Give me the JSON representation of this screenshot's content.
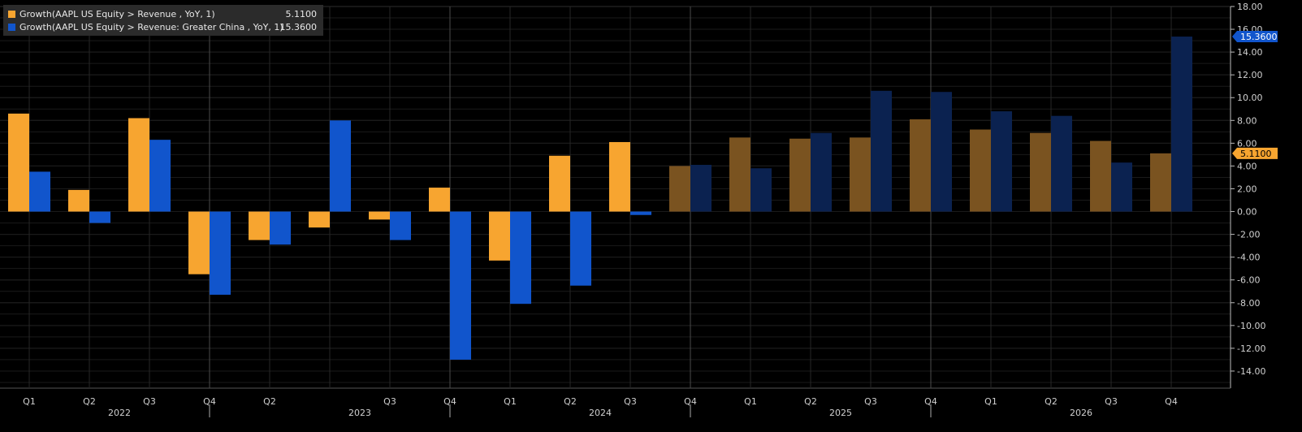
{
  "legend": {
    "items": [
      {
        "name": "Growth(AAPL US Equity > Revenue , YoY, 1)",
        "value": "5.1100"
      },
      {
        "name": "Growth(AAPL US Equity > Revenue: Greater China , YoY, 1)",
        "value": "15.3600"
      }
    ]
  },
  "chart_data": {
    "type": "bar",
    "categories": [
      "Q1",
      "Q2",
      "Q3",
      "Q4",
      "Q1",
      "Q2",
      "Q3",
      "Q4",
      "Q1",
      "Q2",
      "Q3",
      "Q4",
      "Q1",
      "Q2",
      "Q3",
      "Q4",
      "Q1",
      "Q2",
      "Q3",
      "Q4"
    ],
    "quarter_labels": [
      "Q1",
      "Q2",
      "Q3",
      "Q4",
      "Q2",
      "",
      "Q3",
      "Q4",
      "Q1",
      "Q2",
      "Q3",
      "Q4",
      "Q1",
      "Q2",
      "Q3",
      "Q4",
      "Q1",
      "Q2",
      "Q3",
      "Q4"
    ],
    "year_labels": [
      {
        "label": "2022",
        "index": 1
      },
      {
        "label": "2023",
        "index": 5
      },
      {
        "label": "2024",
        "index": 9
      },
      {
        "label": "2025",
        "index": 13
      },
      {
        "label": "2026",
        "index": 17
      }
    ],
    "year_boundaries": [
      3,
      7,
      11,
      15
    ],
    "forecast_start_index": 11,
    "series": [
      {
        "name": "Growth(AAPL US Equity > Revenue , YoY, 1)",
        "color": "#f7a530",
        "forecast_color": "#7a5320",
        "values": [
          8.6,
          1.9,
          8.2,
          -5.5,
          -2.5,
          -1.4,
          -0.7,
          2.1,
          -4.3,
          4.9,
          6.1,
          4.0,
          6.5,
          6.4,
          6.5,
          8.1,
          7.2,
          6.9,
          6.2,
          5.11
        ]
      },
      {
        "name": "Growth(AAPL US Equity > Revenue: Greater China , YoY, 1)",
        "color": "#1155cc",
        "forecast_color": "#0b2250",
        "values": [
          3.5,
          -1.0,
          6.3,
          -7.3,
          -2.9,
          8.0,
          -2.5,
          -13.0,
          -8.1,
          -6.5,
          -0.3,
          4.1,
          3.8,
          6.9,
          10.6,
          10.5,
          8.8,
          8.4,
          4.3,
          15.36
        ]
      }
    ],
    "y_ticks": [
      "18.00",
      "16.00",
      "14.00",
      "12.00",
      "10.00",
      "8.00",
      "6.00",
      "4.00",
      "2.00",
      "0.00",
      "-2.00",
      "-4.00",
      "-6.00",
      "-8.00",
      "-10.00",
      "-12.00",
      "-14.00"
    ],
    "ylim": [
      -15.5,
      18.0
    ],
    "last_value_labels": [
      {
        "text": "15.3600",
        "value": 15.36,
        "color": "#1155cc"
      },
      {
        "text": "5.1100",
        "value": 5.11,
        "color": "#f7a530"
      }
    ]
  }
}
